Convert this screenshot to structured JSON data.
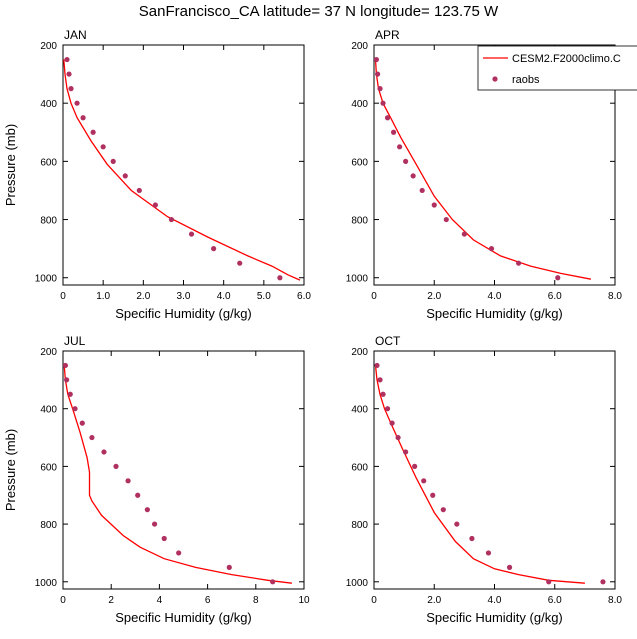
{
  "title": "SanFrancisco_CA  latitude= 37 N longitude= 123.75 W",
  "legend": {
    "model": "CESM2.F2000climo.C",
    "obs": "raobs"
  },
  "colors": {
    "model_line": "#ff0000",
    "obs_marker": "#b03060"
  },
  "chart_data": [
    {
      "type": "line",
      "panel": "JAN",
      "xlabel": "Specific Humidity (g/kg)",
      "ylabel": "Pressure (mb)",
      "xlim": [
        0,
        6
      ],
      "ylim": [
        1025,
        200
      ],
      "xticks": [
        "0",
        "1.0",
        "2.0",
        "3.0",
        "4.0",
        "5.0",
        "6.0"
      ],
      "xtick_values": [
        0,
        1,
        2,
        3,
        4,
        5,
        6
      ],
      "yticks": [
        "200",
        "400",
        "600",
        "800",
        "1000"
      ],
      "ytick_values": [
        200,
        400,
        600,
        800,
        1000
      ],
      "series": [
        {
          "name": "CESM2.F2000climo.C",
          "style": "line",
          "x": [
            0.02,
            0.05,
            0.1,
            0.2,
            0.35,
            0.7,
            1.1,
            1.7,
            2.6,
            3.6,
            4.6,
            5.2,
            5.6,
            5.9
          ],
          "y": [
            250,
            300,
            350,
            400,
            450,
            530,
            610,
            700,
            790,
            860,
            925,
            960,
            990,
            1008
          ]
        },
        {
          "name": "raobs",
          "style": "marker",
          "x": [
            0.1,
            0.15,
            0.2,
            0.35,
            0.5,
            0.75,
            1.0,
            1.25,
            1.55,
            1.9,
            2.3,
            2.7,
            3.2,
            3.75,
            4.4,
            5.4
          ],
          "y": [
            250,
            300,
            350,
            400,
            450,
            500,
            550,
            600,
            650,
            700,
            750,
            800,
            850,
            900,
            950,
            1000
          ]
        }
      ]
    },
    {
      "type": "line",
      "panel": "APR",
      "xlabel": "Specific Humidity (g/kg)",
      "ylabel": "",
      "xlim": [
        0,
        8
      ],
      "ylim": [
        1025,
        200
      ],
      "xticks": [
        "0",
        "2.0",
        "4.0",
        "6.0",
        "8.0"
      ],
      "xtick_values": [
        0,
        2,
        4,
        6,
        8
      ],
      "yticks": [
        "200",
        "400",
        "600",
        "800",
        "1000"
      ],
      "ytick_values": [
        200,
        400,
        600,
        800,
        1000
      ],
      "legend_position": "top-right",
      "series": [
        {
          "name": "CESM2.F2000climo.C",
          "style": "line",
          "x": [
            0.05,
            0.08,
            0.15,
            0.3,
            0.55,
            0.9,
            1.4,
            2.0,
            2.6,
            3.3,
            4.2,
            5.2,
            6.2,
            7.2
          ],
          "y": [
            250,
            300,
            350,
            400,
            450,
            520,
            610,
            720,
            800,
            870,
            925,
            960,
            985,
            1005
          ]
        },
        {
          "name": "raobs",
          "style": "marker",
          "x": [
            0.08,
            0.12,
            0.2,
            0.3,
            0.45,
            0.65,
            0.85,
            1.05,
            1.3,
            1.6,
            2.0,
            2.4,
            3.0,
            3.9,
            4.8,
            6.1
          ],
          "y": [
            250,
            300,
            350,
            400,
            450,
            500,
            550,
            600,
            650,
            700,
            750,
            800,
            850,
            900,
            950,
            1000
          ]
        }
      ]
    },
    {
      "type": "line",
      "panel": "JUL",
      "xlabel": "Specific Humidity (g/kg)",
      "ylabel": "Pressure (mb)",
      "xlim": [
        0,
        10
      ],
      "ylim": [
        1025,
        200
      ],
      "xticks": [
        "0",
        "2",
        "4",
        "6",
        "8",
        "10"
      ],
      "xtick_values": [
        0,
        2,
        4,
        6,
        8,
        10
      ],
      "yticks": [
        "200",
        "400",
        "600",
        "800",
        "1000"
      ],
      "ytick_values": [
        200,
        400,
        600,
        800,
        1000
      ],
      "series": [
        {
          "name": "CESM2.F2000climo.C",
          "style": "line",
          "x": [
            0.05,
            0.1,
            0.2,
            0.4,
            0.7,
            1.0,
            1.1,
            1.1,
            1.2,
            1.6,
            2.5,
            3.2,
            4.2,
            5.5,
            7.0,
            8.5,
            9.5
          ],
          "y": [
            250,
            300,
            350,
            400,
            480,
            570,
            620,
            700,
            720,
            770,
            840,
            880,
            920,
            950,
            975,
            995,
            1005
          ]
        },
        {
          "name": "raobs",
          "style": "marker",
          "x": [
            0.1,
            0.15,
            0.3,
            0.5,
            0.8,
            1.2,
            1.7,
            2.2,
            2.7,
            3.1,
            3.5,
            3.8,
            4.2,
            4.8,
            6.9,
            8.7
          ],
          "y": [
            250,
            300,
            350,
            400,
            450,
            500,
            550,
            600,
            650,
            700,
            750,
            800,
            850,
            900,
            950,
            1000
          ]
        }
      ]
    },
    {
      "type": "line",
      "panel": "OCT",
      "xlabel": "Specific Humidity (g/kg)",
      "ylabel": "",
      "xlim": [
        0,
        8
      ],
      "ylim": [
        1025,
        200
      ],
      "xticks": [
        "0",
        "2.0",
        "4.0",
        "6.0",
        "8.0"
      ],
      "xtick_values": [
        0,
        2,
        4,
        6,
        8
      ],
      "yticks": [
        "200",
        "400",
        "600",
        "800",
        "1000"
      ],
      "ytick_values": [
        200,
        400,
        600,
        800,
        1000
      ],
      "series": [
        {
          "name": "CESM2.F2000climo.C",
          "style": "line",
          "x": [
            0.05,
            0.1,
            0.2,
            0.35,
            0.6,
            0.95,
            1.4,
            2.0,
            2.7,
            3.3,
            4.0,
            4.8,
            5.8,
            7.0
          ],
          "y": [
            250,
            300,
            350,
            400,
            460,
            540,
            640,
            760,
            860,
            920,
            955,
            975,
            995,
            1005
          ]
        },
        {
          "name": "raobs",
          "style": "marker",
          "x": [
            0.1,
            0.2,
            0.3,
            0.45,
            0.6,
            0.8,
            1.05,
            1.35,
            1.65,
            1.95,
            2.3,
            2.75,
            3.25,
            3.8,
            4.5,
            5.8,
            7.6
          ],
          "y": [
            250,
            300,
            350,
            400,
            450,
            500,
            550,
            600,
            650,
            700,
            750,
            800,
            850,
            900,
            950,
            1000,
            1000
          ]
        }
      ]
    }
  ]
}
